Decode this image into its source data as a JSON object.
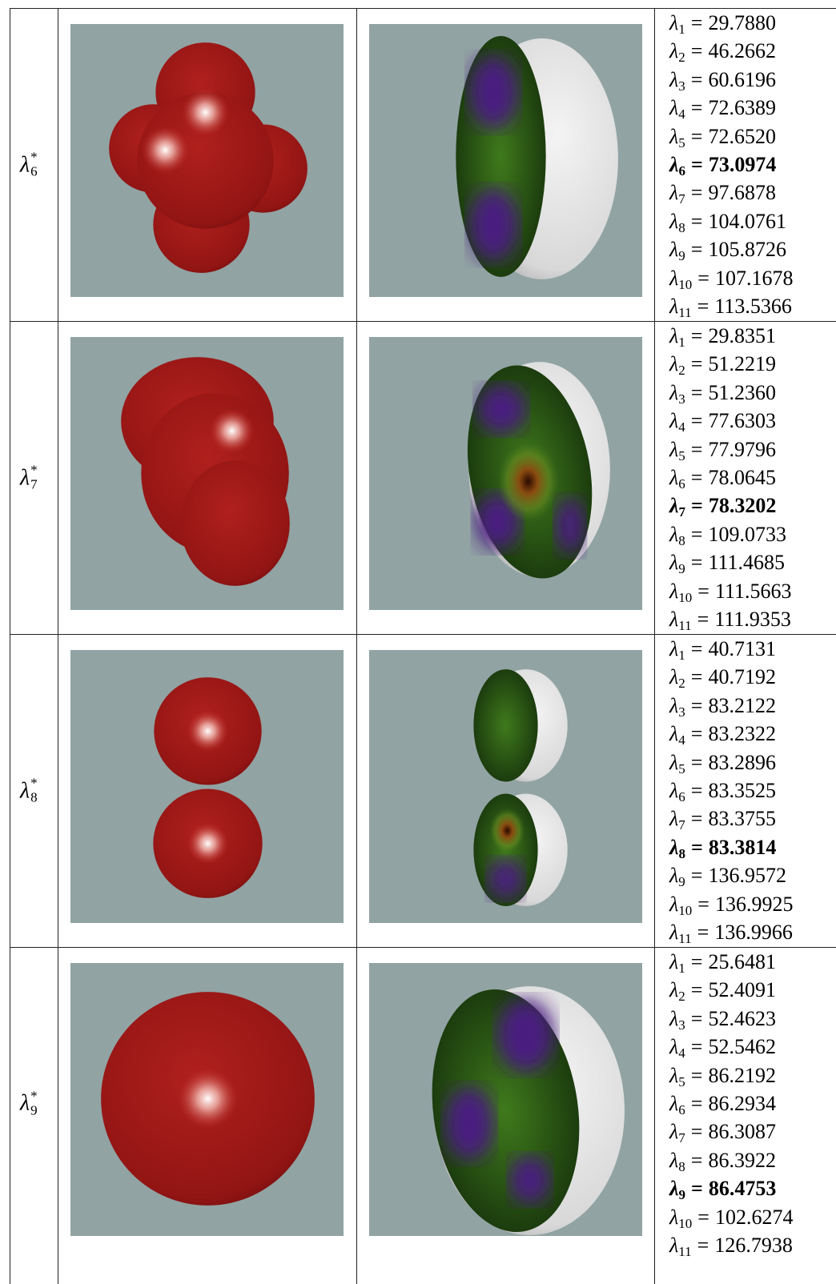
{
  "symbol": "λ",
  "relation": "=",
  "star": "*",
  "rows": [
    {
      "label_index": "6",
      "eigenvalues": [
        {
          "index": "1",
          "value": "29.7880"
        },
        {
          "index": "2",
          "value": "46.2662"
        },
        {
          "index": "3",
          "value": "60.6196"
        },
        {
          "index": "4",
          "value": "72.6389"
        },
        {
          "index": "5",
          "value": "72.6520"
        },
        {
          "index": "6",
          "value": "73.0974",
          "bold": true
        },
        {
          "index": "7",
          "value": "97.6878"
        },
        {
          "index": "8",
          "value": "104.0761"
        },
        {
          "index": "9",
          "value": "105.8726"
        },
        {
          "index": "10",
          "value": "107.1678"
        },
        {
          "index": "11",
          "value": "113.5366"
        }
      ]
    },
    {
      "label_index": "7",
      "eigenvalues": [
        {
          "index": "1",
          "value": "29.8351"
        },
        {
          "index": "2",
          "value": "51.2219"
        },
        {
          "index": "3",
          "value": "51.2360"
        },
        {
          "index": "4",
          "value": "77.6303"
        },
        {
          "index": "5",
          "value": "77.9796"
        },
        {
          "index": "6",
          "value": "78.0645"
        },
        {
          "index": "7",
          "value": "78.3202",
          "bold": true
        },
        {
          "index": "8",
          "value": "109.0733"
        },
        {
          "index": "9",
          "value": "111.4685"
        },
        {
          "index": "10",
          "value": "111.5663"
        },
        {
          "index": "11",
          "value": "111.9353"
        }
      ]
    },
    {
      "label_index": "8",
      "eigenvalues": [
        {
          "index": "1",
          "value": "40.7131"
        },
        {
          "index": "2",
          "value": "40.7192"
        },
        {
          "index": "3",
          "value": "83.2122"
        },
        {
          "index": "4",
          "value": "83.2322"
        },
        {
          "index": "5",
          "value": "83.2896"
        },
        {
          "index": "6",
          "value": "83.3525"
        },
        {
          "index": "7",
          "value": "83.3755"
        },
        {
          "index": "8",
          "value": "83.3814",
          "bold": true
        },
        {
          "index": "9",
          "value": "136.9572"
        },
        {
          "index": "10",
          "value": "136.9925"
        },
        {
          "index": "11",
          "value": "136.9966"
        }
      ]
    },
    {
      "label_index": "9",
      "eigenvalues": [
        {
          "index": "1",
          "value": "25.6481"
        },
        {
          "index": "2",
          "value": "52.4091"
        },
        {
          "index": "3",
          "value": "52.4623"
        },
        {
          "index": "4",
          "value": "52.5462"
        },
        {
          "index": "5",
          "value": "86.2192"
        },
        {
          "index": "6",
          "value": "86.2934"
        },
        {
          "index": "7",
          "value": "86.3087"
        },
        {
          "index": "8",
          "value": "86.3922"
        },
        {
          "index": "9",
          "value": "86.4753",
          "bold": true
        },
        {
          "index": "10",
          "value": "102.6274"
        },
        {
          "index": "11",
          "value": "126.7938"
        }
      ]
    }
  ]
}
